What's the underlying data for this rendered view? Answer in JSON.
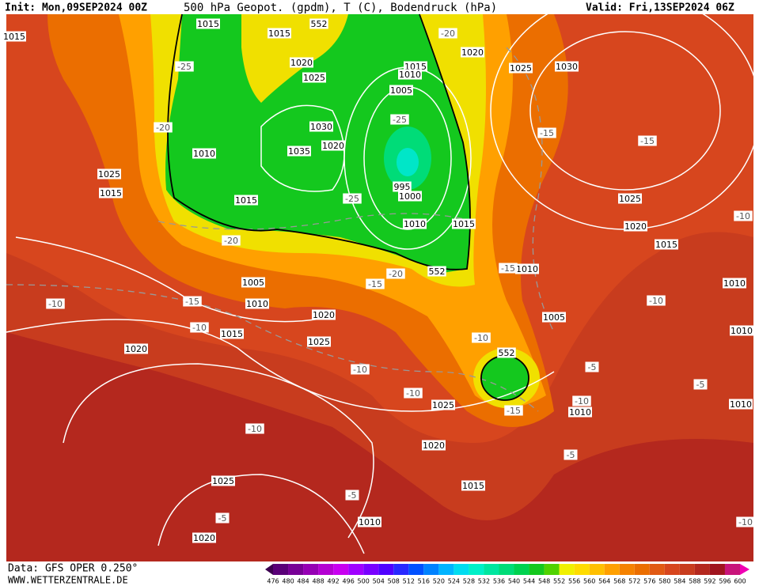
{
  "header": {
    "init": "Init: Mon,09SEP2024 00Z",
    "title": "500 hPa Geopot. (gpdm), T (C), Bodendruck (hPa)",
    "valid": "Valid: Fri,13SEP2024 06Z"
  },
  "footer": {
    "source": "Data: GFS OPER 0.250°",
    "site": "WWW.WETTERZENTRALE.DE"
  },
  "scale": {
    "labels": [
      476,
      480,
      484,
      488,
      492,
      496,
      500,
      504,
      508,
      512,
      516,
      520,
      524,
      528,
      532,
      536,
      540,
      544,
      548,
      552,
      556,
      560,
      564,
      568,
      572,
      576,
      580,
      584,
      588,
      592,
      596,
      600
    ],
    "colors": [
      "#3c0050",
      "#5a0078",
      "#780096",
      "#9600b4",
      "#b400d2",
      "#c800f0",
      "#a000ff",
      "#7800ff",
      "#5000ff",
      "#2828ff",
      "#0050ff",
      "#0082ff",
      "#00b4ff",
      "#00dcf0",
      "#00f0c8",
      "#00e6a0",
      "#00dc78",
      "#00d250",
      "#14c81e",
      "#50d200",
      "#f0f000",
      "#ffdc00",
      "#ffc000",
      "#ffa000",
      "#f58200",
      "#eb6e00",
      "#e15a14",
      "#d7461e",
      "#c83c1e",
      "#b4281e",
      "#a0141e",
      "#c8147a",
      "#f000b4"
    ]
  },
  "map": {
    "pressure_labels": [
      "1015",
      "1015",
      "1015",
      "552",
      "1020",
      "1025",
      "1030",
      "1035",
      "1020",
      "1010",
      "1015",
      "1015",
      "1010",
      "1005",
      "995",
      "1000",
      "1010",
      "1015",
      "1020",
      "1025",
      "1030",
      "1025",
      "1020",
      "1015",
      "1010",
      "1005",
      "1010",
      "1020",
      "1025",
      "1015",
      "1020",
      "1025",
      "1015",
      "1010",
      "1010",
      "1010",
      "1025",
      "1005",
      "1010",
      "1025",
      "1020",
      "1015",
      "1010",
      "1025",
      "1020",
      "1010",
      "552",
      "552"
    ],
    "temp_labels": [
      "-20",
      "-25",
      "-20",
      "-25",
      "-25",
      "-15",
      "-15",
      "-20",
      "-20",
      "-15",
      "-10",
      "-15",
      "-10",
      "-10",
      "-15",
      "-10",
      "-10",
      "-20",
      "-10",
      "-15",
      "-10",
      "-5",
      "-5",
      "-10",
      "-5",
      "-5",
      "-10",
      "-5",
      "-10"
    ]
  }
}
